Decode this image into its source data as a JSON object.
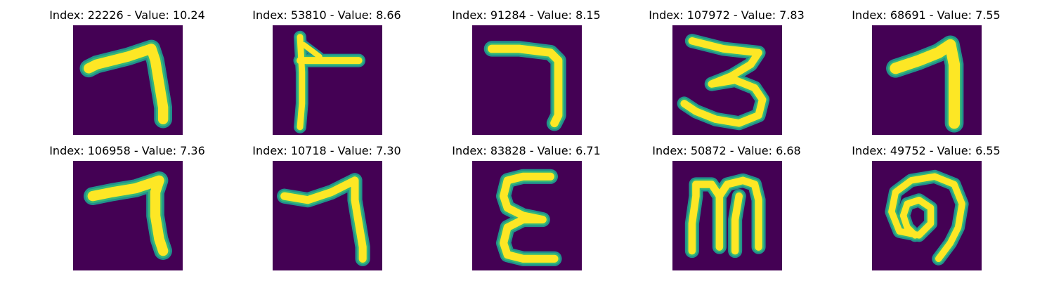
{
  "colors": {
    "background": "#440154",
    "stroke_core": "#fde725",
    "stroke_edge": "#35b779",
    "stroke_halo": "#21918c"
  },
  "panels": [
    {
      "title": "Index: 22226 - Value: 10.24",
      "index": 22226,
      "value": 10.24,
      "glyph": "seven-a"
    },
    {
      "title": "Index: 53810 - Value: 8.66",
      "index": 53810,
      "value": 8.66,
      "glyph": "cross-t"
    },
    {
      "title": "Index: 91284 - Value: 8.15",
      "index": 91284,
      "value": 8.15,
      "glyph": "seven-b"
    },
    {
      "title": "Index: 107972 - Value: 7.83",
      "index": 107972,
      "value": 7.83,
      "glyph": "three"
    },
    {
      "title": "Index: 68691 - Value: 7.55",
      "index": 68691,
      "value": 7.55,
      "glyph": "seven-c"
    },
    {
      "title": "Index: 106958 - Value: 7.36",
      "index": 106958,
      "value": 7.36,
      "glyph": "seven-d"
    },
    {
      "title": "Index: 10718 - Value: 7.30",
      "index": 10718,
      "value": 7.3,
      "glyph": "seven-e"
    },
    {
      "title": "Index: 83828 - Value: 6.71",
      "index": 83828,
      "value": 6.71,
      "glyph": "epsilon"
    },
    {
      "title": "Index: 50872 - Value: 6.68",
      "index": 50872,
      "value": 6.68,
      "glyph": "m"
    },
    {
      "title": "Index: 49752 - Value: 6.55",
      "index": 49752,
      "value": 6.55,
      "glyph": "loop"
    }
  ]
}
